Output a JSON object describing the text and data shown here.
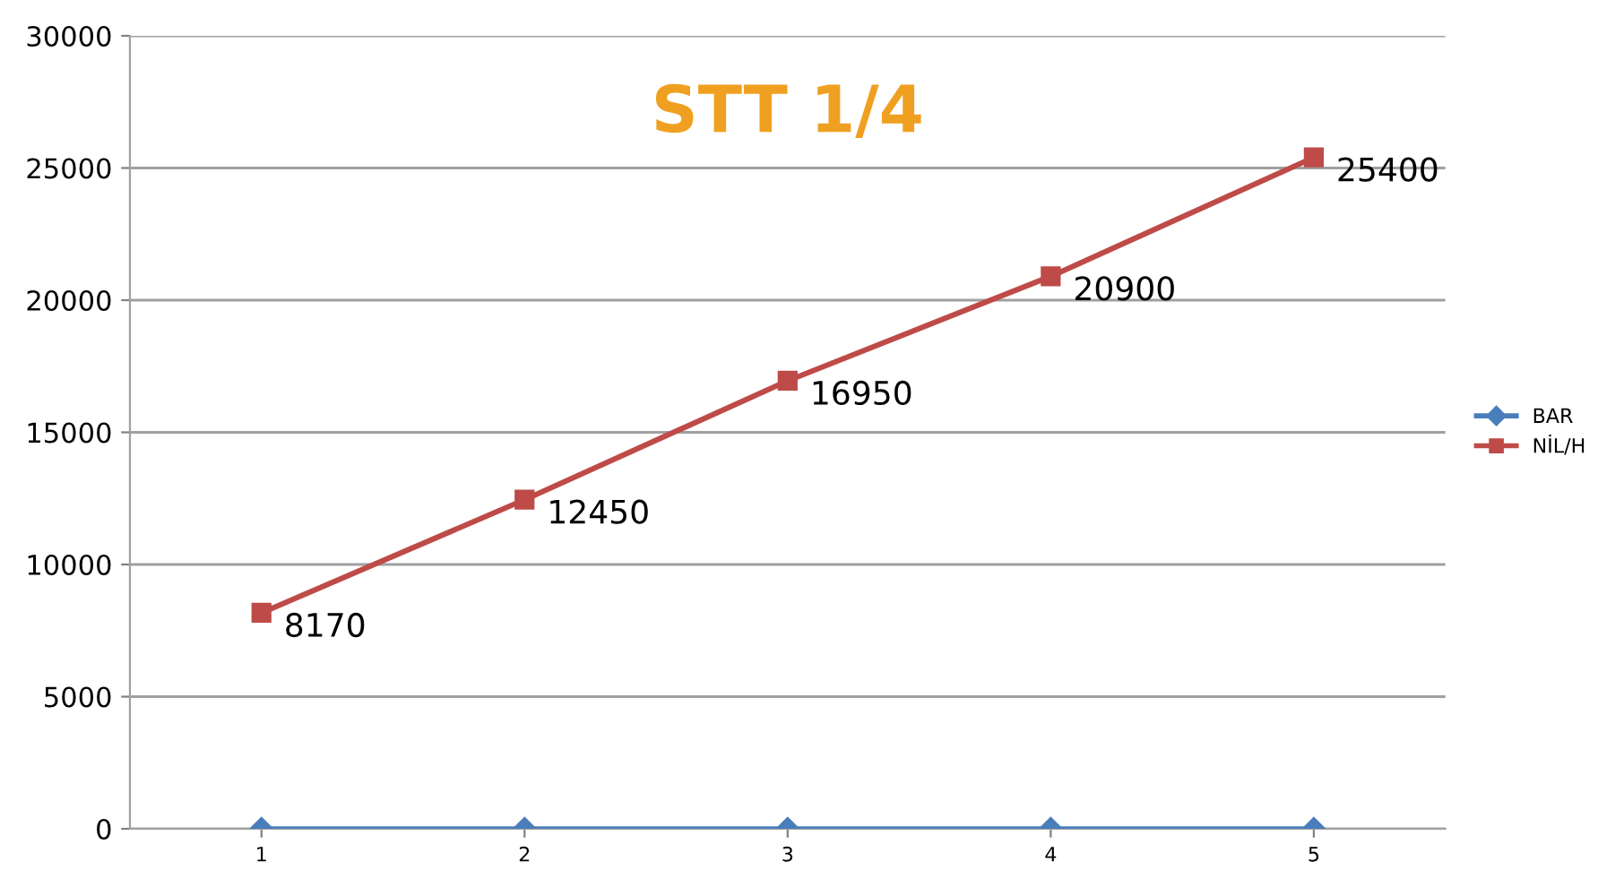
{
  "chart_data": {
    "type": "line",
    "title": "STT 1/4",
    "categories": [
      "1",
      "2",
      "3",
      "4",
      "5"
    ],
    "series": [
      {
        "name": "BAR",
        "color": "#4a7ebb",
        "marker": "diamond",
        "values": [
          0,
          0,
          0,
          0,
          0
        ]
      },
      {
        "name": "NİL/H",
        "color": "#be4b48",
        "marker": "square",
        "values": [
          8170,
          12450,
          16950,
          20900,
          25400
        ],
        "value_labels": [
          "8170",
          "12450",
          "16950",
          "20900",
          "25400"
        ]
      }
    ],
    "ylim": [
      0,
      30000
    ],
    "yticks": [
      0,
      5000,
      10000,
      15000,
      20000,
      25000,
      30000
    ],
    "grid": "y",
    "legend": "right"
  }
}
